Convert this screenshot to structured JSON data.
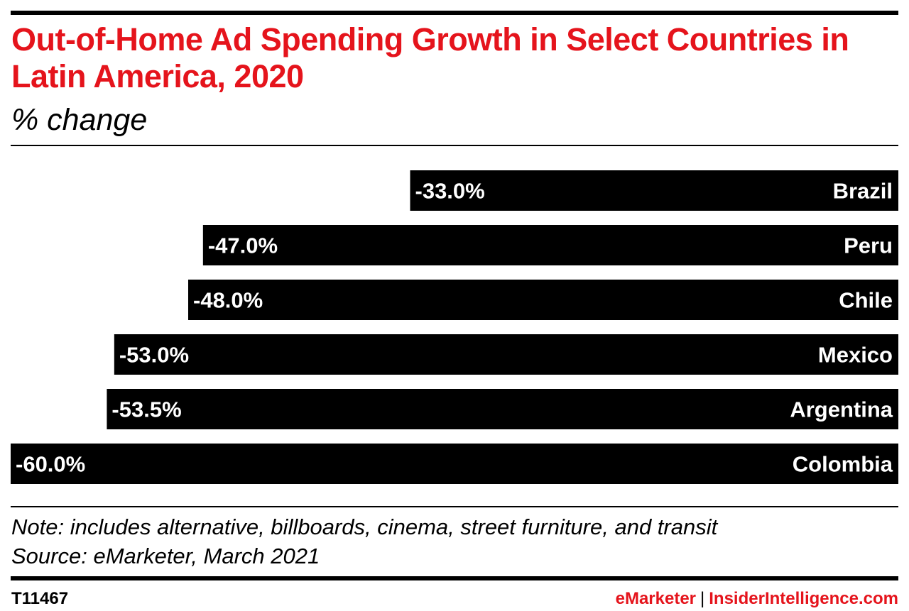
{
  "header": {
    "title": "Out-of-Home Ad Spending Growth in Select Countries in Latin America, 2020",
    "subtitle": "% change"
  },
  "chart_data": {
    "type": "bar",
    "orientation": "horizontal",
    "categories": [
      "Brazil",
      "Peru",
      "Chile",
      "Mexico",
      "Argentina",
      "Colombia"
    ],
    "values": [
      -33.0,
      -47.0,
      -48.0,
      -53.0,
      -53.5,
      -60.0
    ],
    "value_labels": [
      "-33.0%",
      "-47.0%",
      "-48.0%",
      "-53.0%",
      "-53.5%",
      "-60.0%"
    ],
    "bar_color": "#000000",
    "label_color": "#ffffff",
    "title": "Out-of-Home Ad Spending Growth in Select Countries in Latin America, 2020",
    "subtitle": "% change",
    "xlim": [
      -60,
      0
    ],
    "grid": false
  },
  "footer": {
    "note": "Note: includes alternative, billboards, cinema, street furniture, and transit",
    "source": "Source: eMarketer, March 2021",
    "chart_id": "T11467",
    "brand_emarketer": "eMarketer",
    "brand_separator": "|",
    "brand_insider": "InsiderIntelligence.com"
  },
  "colors": {
    "accent_red": "#e5141c",
    "text": "#000000",
    "background": "#ffffff"
  }
}
